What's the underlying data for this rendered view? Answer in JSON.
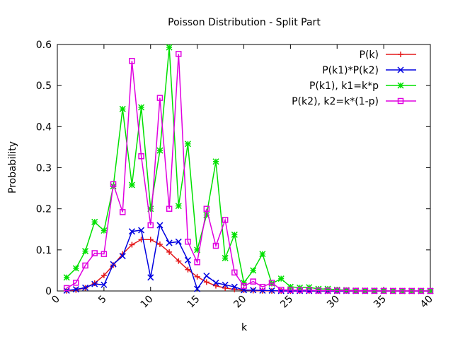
{
  "chart_data": {
    "type": "line",
    "title": "Poisson Distribution - Split Part",
    "xlabel": "k",
    "ylabel": "Probability",
    "xlim": [
      0,
      40
    ],
    "ylim": [
      0,
      0.6
    ],
    "xticks": [
      "0",
      "5",
      "10",
      "15",
      "20",
      "25",
      "30",
      "35",
      "40"
    ],
    "yticks": [
      "0",
      "0.1",
      "0.2",
      "0.3",
      "0.4",
      "0.5",
      "0.6"
    ],
    "grid": false,
    "legend_position": "top-right",
    "x": [
      1,
      2,
      3,
      4,
      5,
      6,
      7,
      8,
      9,
      10,
      11,
      12,
      13,
      14,
      15,
      16,
      17,
      18,
      19,
      20,
      21,
      22,
      23,
      24,
      25,
      26,
      27,
      28,
      29,
      30,
      31,
      32,
      33,
      34,
      35,
      36,
      37,
      38,
      39,
      40
    ],
    "series": [
      {
        "name": "P(k)",
        "color": "#e41a1c",
        "marker": "plus",
        "values": [
          0.0005,
          0.0023,
          0.0076,
          0.0189,
          0.0378,
          0.0631,
          0.0901,
          0.1126,
          0.1251,
          0.1251,
          0.1137,
          0.0948,
          0.0729,
          0.0521,
          0.0347,
          0.0217,
          0.0128,
          0.0071,
          0.0037,
          0.0019,
          0.0009,
          0.0004,
          0.0002,
          0.0001,
          0,
          0,
          0,
          0,
          0,
          0,
          0,
          0,
          0,
          0,
          0,
          0,
          0,
          0,
          0,
          0
        ]
      },
      {
        "name": "P(k1)*P(k2)",
        "color": "#0000e0",
        "marker": "cross",
        "values": [
          0.001,
          0.004,
          0.008,
          0.017,
          0.015,
          0.065,
          0.085,
          0.145,
          0.148,
          0.033,
          0.16,
          0.117,
          0.12,
          0.075,
          0.005,
          0.037,
          0.02,
          0.015,
          0.01,
          0.002,
          0.002,
          0.001,
          0.001,
          0,
          0,
          0,
          0,
          0,
          0,
          0,
          0,
          0,
          0,
          0,
          0,
          0,
          0,
          0,
          0,
          0
        ]
      },
      {
        "name": "P(k1), k1=k*p",
        "color": "#00e000",
        "marker": "star",
        "values": [
          0.033,
          0.055,
          0.097,
          0.168,
          0.147,
          0.255,
          0.443,
          0.258,
          0.447,
          0.2,
          0.342,
          0.593,
          0.207,
          0.358,
          0.1,
          0.185,
          0.315,
          0.08,
          0.137,
          0.02,
          0.05,
          0.09,
          0.018,
          0.03,
          0.01,
          0.008,
          0.009,
          0.005,
          0.005,
          0.003,
          0.002,
          0.001,
          0.001,
          0.001,
          0.0005,
          0.0003,
          0.0002,
          0.0001,
          0.0001,
          0.0001
        ]
      },
      {
        "name": "P(k2), k2=k*(1-p)",
        "color": "#e000e0",
        "marker": "square",
        "values": [
          0.007,
          0.02,
          0.062,
          0.092,
          0.09,
          0.26,
          0.192,
          0.56,
          0.328,
          0.16,
          0.47,
          0.2,
          0.577,
          0.12,
          0.07,
          0.2,
          0.11,
          0.173,
          0.045,
          0.012,
          0.023,
          0.01,
          0.02,
          0.003,
          0.002,
          0.002,
          0.002,
          0.001,
          0.001,
          0.001,
          0.001,
          0.0005,
          0.0004,
          0.0003,
          0.0002,
          0.0001,
          0.0001,
          0.0001,
          0.0001,
          0
        ]
      }
    ]
  }
}
